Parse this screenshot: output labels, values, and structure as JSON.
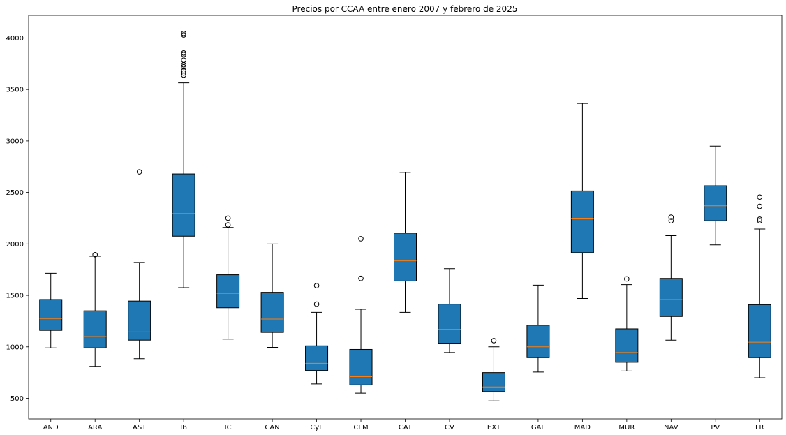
{
  "chart_data": {
    "type": "box",
    "title": "Precios por CCAA entre enero 2007 y febrero de 2025",
    "xlabel": "",
    "ylabel": "",
    "ylim": [
      300,
      4220
    ],
    "yticks": [
      500,
      1000,
      1500,
      2000,
      2500,
      3000,
      3500,
      4000
    ],
    "grid": false,
    "box_color": "#1f77b4",
    "median_color": "#ff7f0e",
    "categories": [
      "AND",
      "ARA",
      "AST",
      "IB",
      "IC",
      "CAN",
      "CyL",
      "CLM",
      "CAT",
      "CV",
      "EXT",
      "GAL",
      "MAD",
      "MUR",
      "NAV",
      "PV",
      "LR"
    ],
    "boxes": [
      {
        "min": 990,
        "q1": 1160,
        "median": 1275,
        "q3": 1460,
        "max": 1715,
        "outliers": []
      },
      {
        "min": 810,
        "q1": 990,
        "median": 1100,
        "q3": 1350,
        "max": 1880,
        "outliers": [
          1895
        ]
      },
      {
        "min": 885,
        "q1": 1065,
        "median": 1145,
        "q3": 1445,
        "max": 1820,
        "outliers": [
          2700
        ]
      },
      {
        "min": 1575,
        "q1": 2075,
        "median": 2295,
        "q3": 2680,
        "max": 3565,
        "outliers": [
          3640,
          3660,
          3680,
          3720,
          3740,
          3785,
          3840,
          3855,
          4030,
          4045
        ]
      },
      {
        "min": 1075,
        "q1": 1380,
        "median": 1520,
        "q3": 1700,
        "max": 2160,
        "outliers": [
          2185,
          2250
        ]
      },
      {
        "min": 995,
        "q1": 1140,
        "median": 1270,
        "q3": 1530,
        "max": 2000,
        "outliers": []
      },
      {
        "min": 640,
        "q1": 770,
        "median": 840,
        "q3": 1010,
        "max": 1335,
        "outliers": [
          1415,
          1595
        ]
      },
      {
        "min": 550,
        "q1": 630,
        "median": 710,
        "q3": 975,
        "max": 1365,
        "outliers": [
          1665,
          2050
        ]
      },
      {
        "min": 1335,
        "q1": 1640,
        "median": 1835,
        "q3": 2105,
        "max": 2695,
        "outliers": []
      },
      {
        "min": 945,
        "q1": 1035,
        "median": 1170,
        "q3": 1415,
        "max": 1760,
        "outliers": []
      },
      {
        "min": 475,
        "q1": 565,
        "median": 610,
        "q3": 750,
        "max": 1000,
        "outliers": [
          1060
        ]
      },
      {
        "min": 755,
        "q1": 895,
        "median": 1000,
        "q3": 1210,
        "max": 1600,
        "outliers": []
      },
      {
        "min": 1470,
        "q1": 1915,
        "median": 2250,
        "q3": 2515,
        "max": 3365,
        "outliers": []
      },
      {
        "min": 765,
        "q1": 850,
        "median": 945,
        "q3": 1175,
        "max": 1605,
        "outliers": [
          1660
        ]
      },
      {
        "min": 1065,
        "q1": 1295,
        "median": 1460,
        "q3": 1665,
        "max": 2080,
        "outliers": [
          2225,
          2260
        ]
      },
      {
        "min": 1990,
        "q1": 2225,
        "median": 2370,
        "q3": 2565,
        "max": 2950,
        "outliers": []
      },
      {
        "min": 700,
        "q1": 895,
        "median": 1045,
        "q3": 1410,
        "max": 2145,
        "outliers": [
          2225,
          2240,
          2365,
          2455
        ]
      }
    ]
  }
}
